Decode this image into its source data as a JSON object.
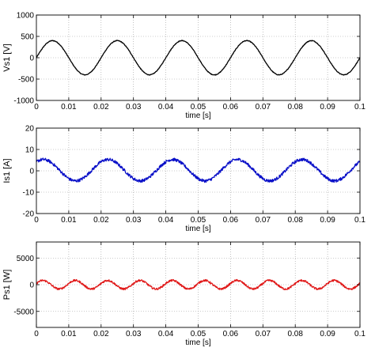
{
  "chart_data": [
    {
      "type": "line",
      "xlabel": "time [s]",
      "ylabel": "Vs1 [V]",
      "xlim": [
        0,
        0.1
      ],
      "ylim": [
        -1000,
        1000
      ],
      "xticks": [
        0,
        0.01,
        0.02,
        0.03,
        0.04,
        0.05,
        0.06,
        0.07,
        0.08,
        0.09,
        0.1
      ],
      "xtick_labels": [
        "0",
        "0.01",
        "0.02",
        "0.03",
        "0.04",
        "0.05",
        "0.06",
        "0.07",
        "0.08",
        "0.09",
        "0.1"
      ],
      "yticks": [
        -1000,
        -500,
        0,
        500,
        1000
      ],
      "ytick_labels": [
        "-1000",
        "-500",
        "0",
        "500",
        "1000"
      ],
      "grid": true,
      "series": [
        {
          "color": "#000000",
          "waveform": "sine",
          "amplitude": 400,
          "frequency_hz": 50,
          "phase_rad": 0,
          "offset": 0,
          "noise": 8
        }
      ]
    },
    {
      "type": "line",
      "xlabel": "time [s]",
      "ylabel": "Is1 [A]",
      "xlim": [
        0,
        0.1
      ],
      "ylim": [
        -20,
        20
      ],
      "xticks": [
        0,
        0.01,
        0.02,
        0.03,
        0.04,
        0.05,
        0.06,
        0.07,
        0.08,
        0.09,
        0.1
      ],
      "xtick_labels": [
        "0",
        "0.01",
        "0.02",
        "0.03",
        "0.04",
        "0.05",
        "0.06",
        "0.07",
        "0.08",
        "0.09",
        "0.1"
      ],
      "yticks": [
        -20,
        -10,
        0,
        10,
        20
      ],
      "ytick_labels": [
        "-20",
        "-10",
        "0",
        "10",
        "20"
      ],
      "grid": true,
      "series": [
        {
          "color": "#0a10c8",
          "waveform": "sine",
          "amplitude": 5,
          "frequency_hz": 50,
          "phase_rad": 0.9,
          "offset": 0.3,
          "noise": 0.7
        }
      ]
    },
    {
      "type": "line",
      "xlabel": "time [s]",
      "ylabel": "Ps1 [W]",
      "xlim": [
        0,
        0.1
      ],
      "ylim": [
        -8000,
        8000
      ],
      "xticks": [
        0,
        0.01,
        0.02,
        0.03,
        0.04,
        0.05,
        0.06,
        0.07,
        0.08,
        0.09,
        0.1
      ],
      "xtick_labels": [
        "0",
        "0.01",
        "0.02",
        "0.03",
        "0.04",
        "0.05",
        "0.06",
        "0.07",
        "0.08",
        "0.09",
        "0.1"
      ],
      "yticks": [
        -5000,
        0,
        5000
      ],
      "ytick_labels": [
        "-5000",
        "0",
        "5000"
      ],
      "grid": true,
      "series": [
        {
          "color": "#e01818",
          "waveform": "sine",
          "amplitude": 800,
          "frequency_hz": 100,
          "phase_rad": 0.3,
          "offset": 0,
          "noise": 180
        }
      ]
    }
  ]
}
